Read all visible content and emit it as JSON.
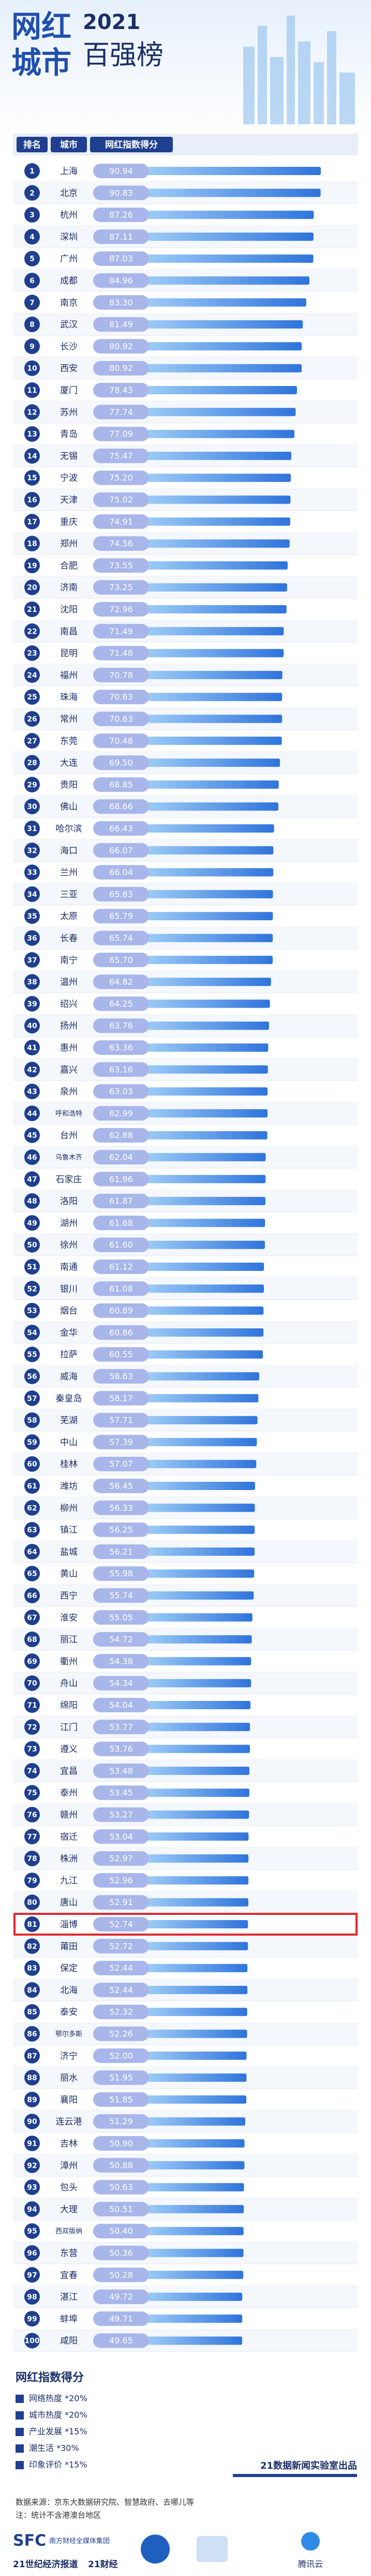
{
  "header": {
    "logo_line1": "网红",
    "logo_line2": "城市",
    "year": "2021",
    "subtitle": "百强榜"
  },
  "column_headers": [
    "排名",
    "城市",
    "网红指数得分"
  ],
  "chart_data": {
    "type": "bar",
    "orientation": "horizontal",
    "color": "#3b82e0",
    "ranks": [
      1,
      2,
      3,
      4,
      5,
      6,
      7,
      8,
      9,
      10,
      11,
      12,
      13,
      14,
      15,
      16,
      17,
      18,
      19,
      20,
      21,
      22,
      23,
      24,
      25,
      26,
      27,
      28,
      29,
      30,
      31,
      32,
      33,
      34,
      35,
      36,
      37,
      38,
      39,
      40,
      41,
      42,
      43,
      44,
      45,
      46,
      47,
      48,
      49,
      50,
      51,
      52,
      53,
      54,
      55,
      56,
      57,
      58,
      59,
      60,
      61,
      62,
      63,
      64,
      65,
      66,
      67,
      68,
      69,
      70,
      71,
      72,
      73,
      74,
      75,
      76,
      77,
      78,
      79,
      80,
      81,
      82,
      83,
      84,
      85,
      86,
      87,
      88,
      89,
      90,
      91,
      92,
      93,
      94,
      95,
      96,
      97,
      98,
      99,
      100
    ],
    "categories": [
      "上海",
      "北京",
      "杭州",
      "深圳",
      "广州",
      "成都",
      "南京",
      "武汉",
      "长沙",
      "西安",
      "厦门",
      "苏州",
      "青岛",
      "无锡",
      "宁波",
      "天津",
      "重庆",
      "郑州",
      "合肥",
      "济南",
      "沈阳",
      "南昌",
      "昆明",
      "福州",
      "珠海",
      "常州",
      "东莞",
      "大连",
      "贵阳",
      "佛山",
      "哈尔滨",
      "海口",
      "兰州",
      "三亚",
      "太原",
      "长春",
      "南宁",
      "温州",
      "绍兴",
      "扬州",
      "惠州",
      "嘉兴",
      "泉州",
      "呼和浩特",
      "台州",
      "乌鲁木齐",
      "石家庄",
      "洛阳",
      "湖州",
      "徐州",
      "南通",
      "银川",
      "烟台",
      "金华",
      "拉萨",
      "威海",
      "秦皇岛",
      "芜湖",
      "中山",
      "桂林",
      "潍坊",
      "柳州",
      "镇江",
      "盐城",
      "黄山",
      "西宁",
      "淮安",
      "丽江",
      "衢州",
      "舟山",
      "绵阳",
      "江门",
      "遵义",
      "宜昌",
      "泰州",
      "赣州",
      "宿迁",
      "株洲",
      "九江",
      "唐山",
      "淄博",
      "莆田",
      "保定",
      "北海",
      "泰安",
      "鄂尔多斯",
      "济宁",
      "丽水",
      "襄阳",
      "连云港",
      "吉林",
      "漳州",
      "包头",
      "大理",
      "西双版纳",
      "东营",
      "宜春",
      "湛江",
      "蚌埠",
      "咸阳"
    ],
    "values": [
      90.94,
      90.83,
      87.26,
      87.11,
      87.03,
      84.96,
      83.3,
      81.49,
      80.92,
      80.92,
      78.43,
      77.74,
      77.09,
      75.47,
      75.2,
      75.02,
      74.91,
      74.56,
      73.55,
      73.25,
      72.96,
      71.49,
      71.48,
      70.78,
      70.63,
      70.63,
      70.48,
      69.5,
      68.85,
      68.66,
      66.43,
      66.07,
      66.04,
      65.83,
      65.79,
      65.74,
      65.7,
      64.82,
      64.25,
      63.76,
      63.36,
      63.16,
      63.03,
      62.99,
      62.88,
      62.04,
      61.96,
      61.87,
      61.68,
      61.6,
      61.12,
      61.08,
      60.89,
      60.86,
      60.55,
      58.63,
      58.17,
      57.71,
      57.39,
      57.07,
      56.45,
      56.33,
      56.25,
      56.21,
      55.98,
      55.74,
      55.05,
      54.72,
      54.38,
      54.34,
      54.04,
      53.77,
      53.76,
      53.48,
      53.45,
      53.27,
      53.04,
      52.97,
      52.96,
      52.91,
      52.74,
      52.72,
      52.44,
      52.44,
      52.32,
      52.26,
      52.0,
      51.95,
      51.85,
      51.29,
      50.9,
      50.88,
      50.63,
      50.51,
      50.4,
      50.36,
      50.28,
      49.72,
      49.71,
      49.65
    ],
    "value_labels": [
      "90.94",
      "90.83",
      "87.26",
      "87.11",
      "87.03",
      "84.96",
      "83.30",
      "81.49",
      "80.92",
      "80.92",
      "78.43",
      "77.74",
      "77.09",
      "75.47",
      "75.20",
      "75.02",
      "74.91",
      "74.56",
      "73.55",
      "73.25",
      "72.96",
      "71.49",
      "71.48",
      "70.78",
      "70.63",
      "70.63",
      "70.48",
      "69.50",
      "68.85",
      "68.66",
      "66.43",
      "66.07",
      "66.04",
      "65.83",
      "65.79",
      "65.74",
      "65.70",
      "64.82",
      "64.25",
      "63.76",
      "63.36",
      "63.16",
      "63.03",
      "62.99",
      "62.88",
      "62.04",
      "61.96",
      "61.87",
      "61.68",
      "61.60",
      "61.12",
      "61.08",
      "60.89",
      "60.86",
      "60.55",
      "58.63",
      "58.17",
      "57.71",
      "57.39",
      "57.07",
      "56.45",
      "56.33",
      "56.25",
      "56.21",
      "55.98",
      "55.74",
      "55.05",
      "54.72",
      "54.38",
      "54.34",
      "54.04",
      "53.77",
      "53.76",
      "53.48",
      "53.45",
      "53.27",
      "53.04",
      "52.97",
      "52.96",
      "52.91",
      "52.74",
      "52.72",
      "52.44",
      "52.44",
      "52.32",
      "52.26",
      "52.00",
      "51.95",
      "51.85",
      "51.29",
      "50.90",
      "50.88",
      "50.63",
      "50.51",
      "50.40",
      "50.36",
      "50.28",
      "49.72",
      "49.71",
      "49.65"
    ]
  },
  "footer": {
    "legend_title": "网红指数得分",
    "legend_items": [
      "网络热度 *20%",
      "城市热度 *20%",
      "产业发展 *15%",
      "潮生活 *30%",
      "印象评价 *15%"
    ],
    "credit": "21数据新闻实验室出品",
    "source": "数据来源：京东大数据研究院、智慧政府、去哪儿等",
    "note": "注：统计不含港澳台地区",
    "logos": [
      "SFC",
      "南方财经全媒体集团",
      "21世纪经济报道",
      "21财经",
      "腾讯云"
    ]
  }
}
